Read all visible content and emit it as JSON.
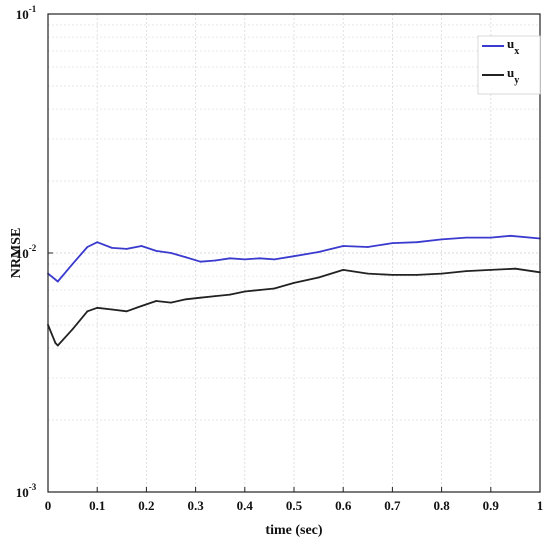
{
  "chart_data": {
    "type": "line",
    "title": "",
    "xlabel": "time (sec)",
    "ylabel": "NRMSE",
    "xlim": [
      0,
      1
    ],
    "ylim": [
      0.001,
      0.1
    ],
    "yscale": "log",
    "grid": true,
    "legend_position": "top-right",
    "x_ticks": [
      "0",
      "0.1",
      "0.2",
      "0.3",
      "0.4",
      "0.5",
      "0.6",
      "0.7",
      "0.8",
      "0.9",
      "1"
    ],
    "y_ticks": [
      {
        "base": "10",
        "exp": "-3",
        "value": 0.001
      },
      {
        "base": "10",
        "exp": "-2",
        "value": 0.01
      },
      {
        "base": "10",
        "exp": "-1",
        "value": 0.1
      }
    ],
    "series": [
      {
        "name": "u",
        "subscript": "x",
        "color": "#3a3acf",
        "x": [
          0.0,
          0.02,
          0.05,
          0.08,
          0.1,
          0.13,
          0.16,
          0.19,
          0.22,
          0.25,
          0.28,
          0.31,
          0.34,
          0.37,
          0.4,
          0.43,
          0.46,
          0.5,
          0.55,
          0.6,
          0.65,
          0.7,
          0.75,
          0.8,
          0.85,
          0.9,
          0.94,
          1.0
        ],
        "y": [
          0.0082,
          0.0076,
          0.009,
          0.0106,
          0.0111,
          0.0105,
          0.0104,
          0.0107,
          0.0102,
          0.01,
          0.0096,
          0.0092,
          0.0093,
          0.0095,
          0.0094,
          0.0095,
          0.0094,
          0.0097,
          0.0101,
          0.0107,
          0.0106,
          0.011,
          0.0111,
          0.0114,
          0.0116,
          0.0116,
          0.0118,
          0.0115
        ]
      },
      {
        "name": "u",
        "subscript": "y",
        "color": "#222222",
        "x": [
          0.0,
          0.015,
          0.02,
          0.05,
          0.08,
          0.1,
          0.13,
          0.16,
          0.19,
          0.22,
          0.25,
          0.28,
          0.31,
          0.34,
          0.37,
          0.4,
          0.43,
          0.46,
          0.5,
          0.55,
          0.6,
          0.65,
          0.7,
          0.75,
          0.8,
          0.85,
          0.9,
          0.95,
          1.0
        ],
        "y": [
          0.005,
          0.0042,
          0.0041,
          0.0048,
          0.0057,
          0.0059,
          0.0058,
          0.0057,
          0.006,
          0.0063,
          0.0062,
          0.0064,
          0.0065,
          0.0066,
          0.0067,
          0.0069,
          0.007,
          0.0071,
          0.0075,
          0.0079,
          0.0085,
          0.0082,
          0.0081,
          0.0081,
          0.0082,
          0.0084,
          0.0085,
          0.0086,
          0.0083
        ]
      }
    ]
  }
}
